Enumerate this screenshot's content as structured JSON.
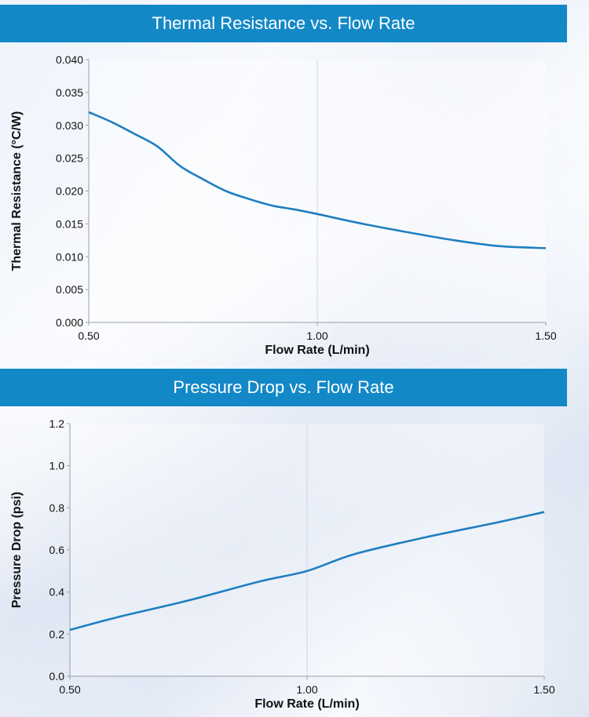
{
  "chart_data": [
    {
      "type": "line",
      "title": "Thermal Resistance vs. Flow Rate",
      "xlabel": "Flow Rate (L/min)",
      "ylabel": "Thermal Resistance (°C/W)",
      "xlim": [
        0.5,
        1.5
      ],
      "ylim": [
        0,
        0.04
      ],
      "x_ticks": [
        "0.50",
        "1.00",
        "1.50"
      ],
      "y_ticks": [
        "0.000",
        "0.005",
        "0.010",
        "0.015",
        "0.020",
        "0.025",
        "0.030",
        "0.035",
        "0.040"
      ],
      "grid": "vertical at 1.00",
      "line_color": "#1f7fc0",
      "series": [
        {
          "x": [
            0.5,
            0.55,
            0.6,
            0.65,
            0.7,
            0.75,
            0.8,
            0.85,
            0.9,
            0.95,
            1.0,
            1.1,
            1.2,
            1.3,
            1.4,
            1.5
          ],
          "y": [
            0.032,
            0.0305,
            0.0287,
            0.0268,
            0.0238,
            0.0218,
            0.02,
            0.0188,
            0.0178,
            0.0172,
            0.0165,
            0.015,
            0.0137,
            0.0125,
            0.0116,
            0.0113
          ]
        }
      ]
    },
    {
      "type": "line",
      "title": "Pressure Drop vs. Flow Rate",
      "xlabel": "Flow Rate (L/min)",
      "ylabel": "Pressure Drop (psi)",
      "xlim": [
        0.5,
        1.5
      ],
      "ylim": [
        0,
        1.2
      ],
      "x_ticks": [
        "0.50",
        "1.00",
        "1.50"
      ],
      "y_ticks": [
        "0.0",
        "0.2",
        "0.4",
        "0.6",
        "0.8",
        "1.0",
        "1.2"
      ],
      "grid": "vertical at 1.00",
      "line_color": "#1f7fc0",
      "series": [
        {
          "x": [
            0.5,
            0.6,
            0.75,
            0.9,
            1.0,
            1.1,
            1.25,
            1.4,
            1.5
          ],
          "y": [
            0.22,
            0.28,
            0.36,
            0.45,
            0.5,
            0.58,
            0.66,
            0.73,
            0.78
          ]
        }
      ]
    }
  ]
}
